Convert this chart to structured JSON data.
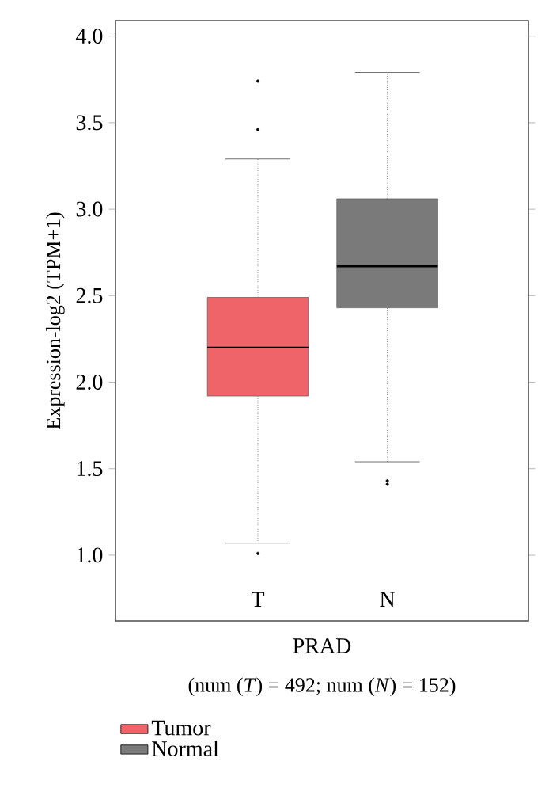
{
  "chart_data": {
    "type": "box",
    "xlabel": "PRAD",
    "ylabel": "Expression-log2 (TPM+1)",
    "annotations": [
      "(num (*T*) = 492; num (*N*) = 152)"
    ],
    "categories": [
      "T",
      "N"
    ],
    "series": [
      {
        "name": "Tumor",
        "color": "#ef6468",
        "boxes": [
          {
            "low": 1.07,
            "q1": 1.92,
            "median": 2.2,
            "q3": 2.49,
            "high": 3.29,
            "outliers": [
              3.74,
              3.46,
              1.01
            ]
          },
          null
        ]
      },
      {
        "name": "Normal",
        "color": "#7a7a7a",
        "boxes": [
          null,
          {
            "low": 1.54,
            "q1": 2.43,
            "median": 2.67,
            "q3": 3.06,
            "high": 3.79,
            "outliers": [
              1.43,
              1.41
            ]
          }
        ]
      }
    ],
    "ylim": [
      0.62,
      4.09
    ],
    "yticks": [
      {
        "value": 1,
        "label": "1.0"
      },
      {
        "value": 1.5,
        "label": "1.5"
      },
      {
        "value": 2,
        "label": "2.0"
      },
      {
        "value": 2.5,
        "label": "2.5"
      },
      {
        "value": 3,
        "label": "3.0"
      },
      {
        "value": 3.5,
        "label": "3.5"
      },
      {
        "value": 4,
        "label": "4.0"
      }
    ],
    "legend": "bottom left"
  }
}
